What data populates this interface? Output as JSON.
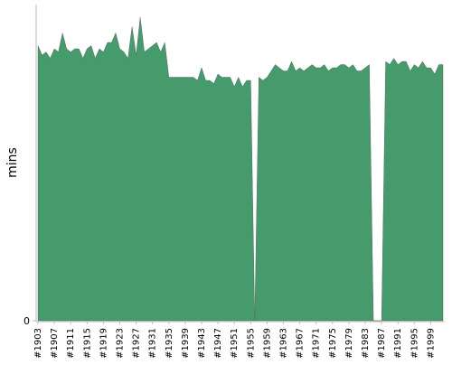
{
  "chart_data": {
    "type": "area",
    "y_label": "mins",
    "color": "#459b6b",
    "ylim": [
      0,
      100
    ],
    "yticks": [
      0
    ],
    "grid": false,
    "categories": [
      "#1903",
      null,
      null,
      null,
      "#1907",
      null,
      null,
      null,
      "#1911",
      null,
      null,
      null,
      "#1915",
      null,
      null,
      null,
      "#1919",
      null,
      null,
      null,
      "#1923",
      null,
      null,
      null,
      "#1927",
      null,
      null,
      null,
      "#1931",
      null,
      null,
      null,
      "#1935",
      null,
      null,
      null,
      "#1939",
      null,
      null,
      null,
      "#1943",
      null,
      null,
      null,
      "#1947",
      null,
      null,
      null,
      "#1951",
      null,
      null,
      null,
      "#1955",
      null,
      null,
      null,
      "#1959",
      null,
      null,
      null,
      "#1963",
      null,
      null,
      null,
      "#1967",
      null,
      null,
      null,
      "#1971",
      null,
      null,
      null,
      "#1975",
      null,
      null,
      null,
      "#1979",
      null,
      null,
      null,
      "#1983",
      null,
      null,
      null,
      "#1987",
      null,
      null,
      null,
      "#1991",
      null,
      null,
      null,
      "#1995",
      null,
      null,
      null,
      "#1999",
      null,
      null,
      null
    ],
    "values": [
      87,
      84,
      85,
      83,
      86,
      85,
      91,
      86,
      85,
      86,
      86,
      83,
      86,
      87,
      83,
      86,
      85,
      88,
      88,
      91,
      86,
      85,
      83,
      93,
      84,
      96,
      85,
      86,
      87,
      88,
      85,
      88,
      77,
      77,
      77,
      77,
      77,
      77,
      77,
      76,
      80,
      76,
      76,
      75,
      78,
      77,
      77,
      77,
      74,
      77,
      74,
      76,
      76,
      0,
      77,
      76,
      77,
      79,
      81,
      80,
      79,
      79,
      82,
      79,
      80,
      79,
      80,
      81,
      80,
      80,
      81,
      79,
      80,
      80,
      81,
      81,
      80,
      81,
      79,
      79,
      80,
      81,
      0,
      0,
      0,
      82,
      81,
      83,
      81,
      82,
      82,
      79,
      81,
      80,
      82,
      80,
      80,
      78,
      81,
      81
    ]
  }
}
